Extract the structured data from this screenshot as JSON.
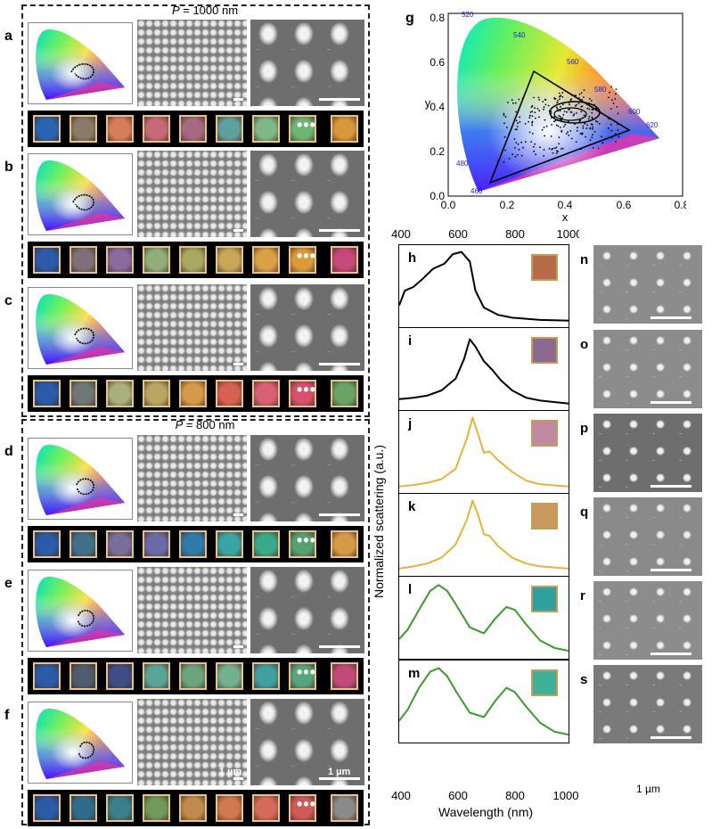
{
  "labels": {
    "panels_left": [
      "a",
      "b",
      "c",
      "d",
      "e",
      "f"
    ],
    "panel_g": "g",
    "spectra_labels": [
      "h",
      "i",
      "j",
      "k",
      "l",
      "m"
    ],
    "sem_labels": [
      "n",
      "o",
      "p",
      "q",
      "r",
      "s"
    ]
  },
  "period_1000": {
    "var": "P",
    "text": " = 1000 nm"
  },
  "period_800": {
    "var": "P",
    "text": " = 800 nm"
  },
  "scale_1um": "1 µm",
  "ellipsis": "•••",
  "cie_chart": {
    "wavelength_marks": [
      "520",
      "540",
      "560",
      "580",
      "600",
      "620",
      "480",
      "460"
    ],
    "x_ticks": [
      "0.0",
      "0.2",
      "0.4",
      "0.6",
      "0.8"
    ],
    "y_ticks": [
      "0.0",
      "0.2",
      "0.4",
      "0.6",
      "0.8"
    ],
    "y_tick_values": [
      0.0,
      0.2,
      0.4,
      0.6,
      0.8
    ],
    "xlabel": "x",
    "ylabel": "y"
  },
  "chart_data": {
    "type": "line",
    "x_top_ticks": [
      "400",
      "600",
      "800",
      "1000"
    ],
    "x_bottom_ticks": [
      "400",
      "600",
      "800",
      "1000"
    ],
    "xlabel": "Wavelength (nm)",
    "ylabel": "Normalized scattering (a.u.)",
    "xlim": [
      400,
      1000
    ],
    "series": [
      {
        "color": "#000000",
        "x": [
          400,
          420,
          450,
          480,
          520,
          560,
          590,
          620,
          650,
          670,
          700,
          750,
          800,
          900,
          1000
        ],
        "y": [
          0.25,
          0.45,
          0.5,
          0.6,
          0.75,
          0.82,
          0.95,
          0.98,
          0.85,
          0.45,
          0.22,
          0.12,
          0.08,
          0.05,
          0.04
        ]
      },
      {
        "color": "#000000",
        "x": [
          400,
          450,
          500,
          550,
          600,
          630,
          650,
          670,
          700,
          730,
          760,
          800,
          850,
          900,
          1000
        ],
        "y": [
          0.1,
          0.12,
          0.15,
          0.22,
          0.38,
          0.65,
          0.92,
          0.82,
          0.62,
          0.5,
          0.36,
          0.22,
          0.12,
          0.08,
          0.04
        ]
      },
      {
        "color": "#e8b23a",
        "x": [
          400,
          450,
          500,
          550,
          600,
          640,
          660,
          680,
          700,
          720,
          750,
          800,
          850,
          900,
          1000
        ],
        "y": [
          0.04,
          0.06,
          0.09,
          0.14,
          0.28,
          0.7,
          0.98,
          0.75,
          0.5,
          0.52,
          0.4,
          0.24,
          0.12,
          0.07,
          0.04
        ]
      },
      {
        "color": "#e8b23a",
        "x": [
          400,
          450,
          500,
          550,
          600,
          640,
          660,
          680,
          700,
          720,
          750,
          800,
          850,
          900,
          1000
        ],
        "y": [
          0.05,
          0.08,
          0.12,
          0.2,
          0.38,
          0.72,
          0.98,
          0.78,
          0.52,
          0.5,
          0.36,
          0.2,
          0.12,
          0.08,
          0.05
        ]
      },
      {
        "color": "#3a9a2a",
        "x": [
          400,
          430,
          470,
          510,
          540,
          570,
          600,
          650,
          700,
          740,
          780,
          810,
          850,
          900,
          950,
          1000
        ],
        "y": [
          0.22,
          0.35,
          0.62,
          0.88,
          0.96,
          0.88,
          0.7,
          0.38,
          0.3,
          0.5,
          0.66,
          0.62,
          0.42,
          0.2,
          0.1,
          0.06
        ]
      },
      {
        "color": "#3a9a2a",
        "x": [
          400,
          430,
          470,
          510,
          540,
          570,
          600,
          650,
          700,
          740,
          780,
          810,
          850,
          900,
          950,
          1000
        ],
        "y": [
          0.25,
          0.4,
          0.7,
          0.92,
          0.97,
          0.86,
          0.66,
          0.36,
          0.3,
          0.52,
          0.7,
          0.64,
          0.44,
          0.22,
          0.1,
          0.06
        ]
      }
    ]
  },
  "swatches": {
    "a": [
      "#2a64b0",
      "#8a7a68",
      "#d77d58",
      "#c76a78",
      "#a56a82",
      "#5f9fa0",
      "#7eb887",
      "#6db476",
      "#d7973c"
    ],
    "b": [
      "#2a5aa8",
      "#7e6f7a",
      "#8a6aa0",
      "#8fae79",
      "#a9a860",
      "#c6a858",
      "#d9a144",
      "#dd9a3a",
      "#c7487a"
    ],
    "c": [
      "#2a5aa8",
      "#6e7876",
      "#aab079",
      "#b9a660",
      "#d59a4a",
      "#d8604e",
      "#d86070",
      "#d8506a",
      "#6aa464"
    ],
    "d": [
      "#2a5aa8",
      "#3f6f8a",
      "#7a6e9a",
      "#6a6aa8",
      "#2f7aa8",
      "#3aa4a4",
      "#3aa88a",
      "#55a070",
      "#d89a48"
    ],
    "e": [
      "#2a5aa8",
      "#4e5c6e",
      "#3d4d86",
      "#5aa498",
      "#6aa47e",
      "#72b090",
      "#3fa0a0",
      "#58a47c",
      "#c24a7a"
    ],
    "f": [
      "#2a5aa8",
      "#2f6c8c",
      "#3a7f8a",
      "#6f9a5a",
      "#c08a4a",
      "#d07a52",
      "#d66a5a",
      "#d05a5a",
      "#8a8a8a"
    ]
  },
  "inset_colors": [
    "#b56a4a",
    "#8a6a90",
    "#c08aa0",
    "#c89a60",
    "#2fa0a0",
    "#3fb09a"
  ]
}
